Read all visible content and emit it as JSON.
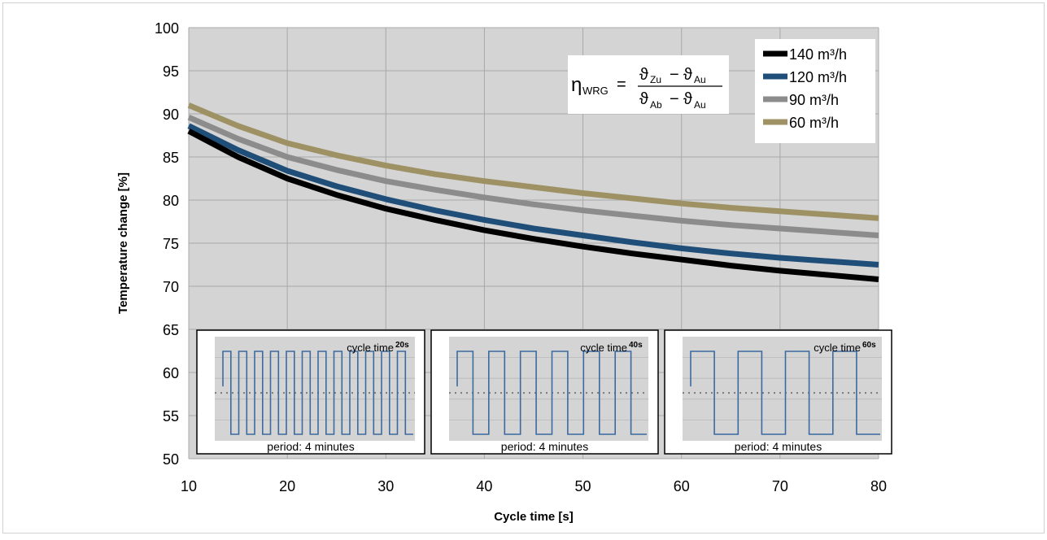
{
  "chart_data": {
    "type": "line",
    "xlabel": "Cycle time  [s]",
    "ylabel": "Temperature change  [%]",
    "xlim": [
      10,
      80
    ],
    "ylim": [
      50,
      100
    ],
    "xticks": [
      10,
      20,
      30,
      40,
      50,
      60,
      70,
      80
    ],
    "yticks": [
      50,
      55,
      60,
      65,
      70,
      75,
      80,
      85,
      90,
      95,
      100
    ],
    "grid": true,
    "legend_position": "top-right",
    "formula": {
      "lhs": "η",
      "lhs_sub": "WRG",
      "numerator": [
        "ϑ",
        "Zu",
        "ϑ",
        "Au"
      ],
      "denominator": [
        "ϑ",
        "Ab",
        "ϑ",
        "Au"
      ]
    },
    "x": [
      10,
      15,
      20,
      25,
      30,
      35,
      40,
      45,
      50,
      55,
      60,
      65,
      70,
      75,
      80
    ],
    "series": [
      {
        "name": "140 m³/h",
        "color": "#000000",
        "values": [
          88.0,
          85.0,
          82.5,
          80.6,
          79.0,
          77.7,
          76.5,
          75.5,
          74.6,
          73.8,
          73.1,
          72.4,
          71.8,
          71.3,
          70.8
        ]
      },
      {
        "name": "120 m³/h",
        "color": "#1f4e79",
        "values": [
          88.6,
          85.8,
          83.4,
          81.6,
          80.1,
          78.8,
          77.7,
          76.7,
          75.9,
          75.1,
          74.4,
          73.8,
          73.3,
          72.9,
          72.5
        ]
      },
      {
        "name": "90 m³/h",
        "color": "#8c8c8c",
        "values": [
          89.6,
          87.1,
          85.0,
          83.5,
          82.2,
          81.2,
          80.3,
          79.5,
          78.8,
          78.2,
          77.6,
          77.1,
          76.7,
          76.3,
          75.9
        ]
      },
      {
        "name": "60 m³/h",
        "color": "#9e9265",
        "values": [
          91.0,
          88.6,
          86.6,
          85.2,
          84.0,
          83.0,
          82.2,
          81.5,
          80.8,
          80.2,
          79.6,
          79.1,
          78.7,
          78.3,
          77.9
        ]
      }
    ],
    "insets": [
      {
        "title": "cycle time",
        "badge": "20s",
        "caption": "period: 4 minutes",
        "cycles": 12
      },
      {
        "title": "cycle time",
        "badge": "40s",
        "caption": "period: 4 minutes",
        "cycles": 6
      },
      {
        "title": "cycle time",
        "badge": "60s",
        "caption": "period: 4 minutes",
        "cycles": 4
      }
    ]
  }
}
